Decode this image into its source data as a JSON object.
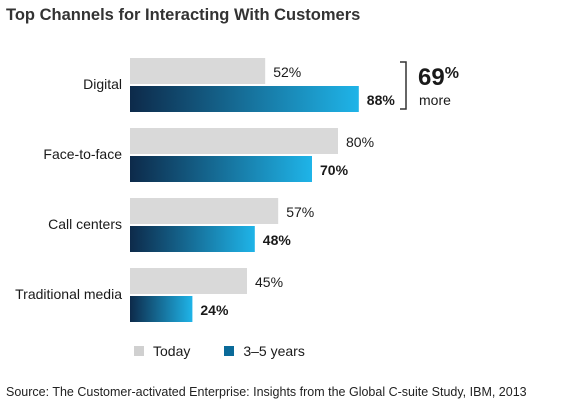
{
  "chart_data": {
    "type": "bar",
    "orientation": "horizontal",
    "title": "Top Channels for Interacting With Customers",
    "categories": [
      "Digital",
      "Face-to-face",
      "Call centers",
      "Traditional media"
    ],
    "series": [
      {
        "name": "Today",
        "values": [
          52,
          80,
          57,
          45
        ],
        "labels": [
          "52%",
          "80%",
          "57%",
          "45%"
        ],
        "color": "#d9d9d9"
      },
      {
        "name": "3–5 years",
        "values": [
          88,
          70,
          48,
          24
        ],
        "labels": [
          "88%",
          "70%",
          "48%",
          "24%"
        ],
        "color_start": "#0d2a4a",
        "color_end": "#1fb4e8"
      }
    ],
    "xlim": [
      0,
      100
    ],
    "grid": false,
    "legend_placement": "bottom",
    "callout": {
      "number": "69",
      "unit": "%",
      "text": "more"
    },
    "source": "Source: The Customer-activated Enterprise: Insights from the Global C-suite Study, IBM, 2013"
  },
  "legend": {
    "swatch_colors": [
      "#d0d0d0",
      "#0a6a99"
    ]
  }
}
